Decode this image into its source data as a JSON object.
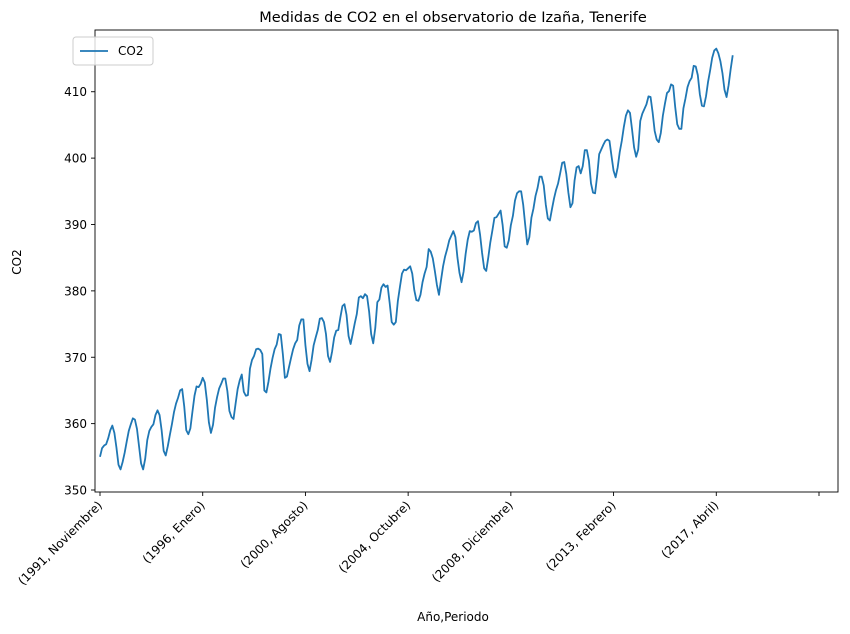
{
  "chart_data": {
    "type": "line",
    "title": "Medidas de CO2 en el observatorio de Izaña, Tenerife",
    "xlabel": "Año,Periodo",
    "ylabel": "CO2",
    "ylim": [
      349.7,
      419.3
    ],
    "yticks": [
      350,
      360,
      370,
      380,
      390,
      400,
      410
    ],
    "x_range": [
      0,
      339
    ],
    "xticks": [
      {
        "x": 0,
        "label": "(1991, Noviembre)"
      },
      {
        "x": 50,
        "label": "(1996, Enero)"
      },
      {
        "x": 100,
        "label": "(2000, Agosto)"
      },
      {
        "x": 150,
        "label": "(2004, Octubre)"
      },
      {
        "x": 200,
        "label": "(2008, Diciembre)"
      },
      {
        "x": 250,
        "label": "(2013, Febrero)"
      },
      {
        "x": 300,
        "label": "(2017, Abril)"
      },
      {
        "x": 350,
        "label": ""
      }
    ],
    "legend": {
      "position": "top-left"
    },
    "grid": false,
    "series": [
      {
        "name": "CO2",
        "color": "#1f77b4",
        "points": [
          [
            0,
            355.0
          ],
          [
            1,
            356.3
          ],
          [
            2,
            356.7
          ],
          [
            3,
            356.9
          ],
          [
            4,
            357.8
          ],
          [
            5,
            359.0
          ],
          [
            6,
            359.7
          ],
          [
            7,
            358.6
          ],
          [
            8,
            356.4
          ],
          [
            9,
            353.8
          ],
          [
            10,
            353.1
          ],
          [
            11,
            354.2
          ],
          [
            12,
            355.6
          ],
          [
            13,
            357.3
          ],
          [
            14,
            358.9
          ],
          [
            15,
            359.9
          ],
          [
            16,
            360.8
          ],
          [
            17,
            360.6
          ],
          [
            18,
            359.2
          ],
          [
            19,
            356.6
          ],
          [
            20,
            354.0
          ],
          [
            21,
            353.1
          ],
          [
            22,
            354.7
          ],
          [
            23,
            357.5
          ],
          [
            24,
            358.9
          ],
          [
            25,
            359.5
          ],
          [
            26,
            359.9
          ],
          [
            27,
            361.3
          ],
          [
            28,
            362.0
          ],
          [
            29,
            361.3
          ],
          [
            30,
            359.0
          ],
          [
            31,
            355.9
          ],
          [
            32,
            355.2
          ],
          [
            33,
            356.6
          ],
          [
            34,
            358.3
          ],
          [
            35,
            359.9
          ],
          [
            36,
            361.7
          ],
          [
            37,
            363.0
          ],
          [
            38,
            363.9
          ],
          [
            39,
            365.0
          ],
          [
            40,
            365.2
          ],
          [
            41,
            362.6
          ],
          [
            42,
            359.0
          ],
          [
            43,
            358.4
          ],
          [
            44,
            359.3
          ],
          [
            45,
            361.8
          ],
          [
            46,
            364.2
          ],
          [
            47,
            365.6
          ],
          [
            48,
            365.5
          ],
          [
            49,
            366.0
          ],
          [
            50,
            366.9
          ],
          [
            51,
            366.2
          ],
          [
            52,
            363.6
          ],
          [
            53,
            360.2
          ],
          [
            54,
            358.6
          ],
          [
            55,
            359.8
          ],
          [
            56,
            362.4
          ],
          [
            57,
            364.0
          ],
          [
            58,
            365.3
          ],
          [
            59,
            366.0
          ],
          [
            60,
            366.8
          ],
          [
            61,
            366.8
          ],
          [
            62,
            364.9
          ],
          [
            63,
            361.9
          ],
          [
            64,
            361.0
          ],
          [
            65,
            360.7
          ],
          [
            66,
            363.0
          ],
          [
            67,
            365.2
          ],
          [
            68,
            366.5
          ],
          [
            69,
            367.4
          ],
          [
            70,
            364.8
          ],
          [
            71,
            364.2
          ],
          [
            72,
            364.3
          ],
          [
            73,
            368.3
          ],
          [
            74,
            369.6
          ],
          [
            75,
            370.2
          ],
          [
            76,
            371.2
          ],
          [
            77,
            371.3
          ],
          [
            78,
            371.1
          ],
          [
            79,
            370.5
          ],
          [
            80,
            365.0
          ],
          [
            81,
            364.7
          ],
          [
            82,
            366.3
          ],
          [
            83,
            368.3
          ],
          [
            84,
            369.9
          ],
          [
            85,
            371.2
          ],
          [
            86,
            371.9
          ],
          [
            87,
            373.5
          ],
          [
            88,
            373.4
          ],
          [
            89,
            370.5
          ],
          [
            90,
            366.9
          ],
          [
            91,
            367.1
          ],
          [
            92,
            368.5
          ],
          [
            93,
            369.9
          ],
          [
            94,
            371.2
          ],
          [
            95,
            372.1
          ],
          [
            96,
            372.6
          ],
          [
            97,
            374.8
          ],
          [
            98,
            375.7
          ],
          [
            99,
            375.7
          ],
          [
            100,
            371.8
          ],
          [
            101,
            369.0
          ],
          [
            102,
            367.9
          ],
          [
            103,
            369.6
          ],
          [
            104,
            371.8
          ],
          [
            105,
            373.0
          ],
          [
            106,
            374.1
          ],
          [
            107,
            375.8
          ],
          [
            108,
            375.9
          ],
          [
            109,
            375.3
          ],
          [
            110,
            373.5
          ],
          [
            111,
            370.2
          ],
          [
            112,
            369.3
          ],
          [
            113,
            370.9
          ],
          [
            114,
            373.0
          ],
          [
            115,
            374.0
          ],
          [
            116,
            374.1
          ],
          [
            117,
            376.0
          ],
          [
            118,
            377.7
          ],
          [
            119,
            378.0
          ],
          [
            120,
            376.4
          ],
          [
            121,
            373.2
          ],
          [
            122,
            372.0
          ],
          [
            123,
            373.5
          ],
          [
            124,
            375.1
          ],
          [
            125,
            376.5
          ],
          [
            126,
            379.0
          ],
          [
            127,
            379.2
          ],
          [
            128,
            378.9
          ],
          [
            129,
            379.5
          ],
          [
            130,
            379.2
          ],
          [
            131,
            376.9
          ],
          [
            132,
            373.5
          ],
          [
            133,
            372.1
          ],
          [
            134,
            374.4
          ],
          [
            135,
            378.3
          ],
          [
            136,
            378.7
          ],
          [
            137,
            380.5
          ],
          [
            138,
            381.0
          ],
          [
            139,
            380.6
          ],
          [
            140,
            380.8
          ],
          [
            141,
            378.2
          ],
          [
            142,
            375.3
          ],
          [
            143,
            374.9
          ],
          [
            144,
            375.3
          ],
          [
            145,
            378.5
          ],
          [
            146,
            380.6
          ],
          [
            147,
            382.6
          ],
          [
            148,
            383.2
          ],
          [
            149,
            383.1
          ],
          [
            150,
            383.4
          ],
          [
            151,
            383.7
          ],
          [
            152,
            382.6
          ],
          [
            153,
            380.1
          ],
          [
            154,
            378.6
          ],
          [
            155,
            378.5
          ],
          [
            156,
            379.4
          ],
          [
            157,
            381.3
          ],
          [
            158,
            382.6
          ],
          [
            159,
            383.6
          ],
          [
            160,
            386.3
          ],
          [
            161,
            385.9
          ],
          [
            162,
            384.9
          ],
          [
            163,
            383.0
          ],
          [
            164,
            380.9
          ],
          [
            165,
            379.4
          ],
          [
            166,
            381.6
          ],
          [
            167,
            383.7
          ],
          [
            168,
            385.2
          ],
          [
            169,
            386.3
          ],
          [
            170,
            387.6
          ],
          [
            171,
            388.3
          ],
          [
            172,
            389.0
          ],
          [
            173,
            388.1
          ],
          [
            174,
            385.0
          ],
          [
            175,
            382.7
          ],
          [
            176,
            381.3
          ],
          [
            177,
            382.9
          ],
          [
            178,
            385.6
          ],
          [
            179,
            387.7
          ],
          [
            180,
            389.0
          ],
          [
            181,
            388.9
          ],
          [
            182,
            389.1
          ],
          [
            183,
            390.2
          ],
          [
            184,
            390.5
          ],
          [
            185,
            388.5
          ],
          [
            186,
            385.7
          ],
          [
            187,
            383.4
          ],
          [
            188,
            383.0
          ],
          [
            189,
            385.0
          ],
          [
            190,
            387.3
          ],
          [
            191,
            389.1
          ],
          [
            192,
            391.0
          ],
          [
            193,
            391.1
          ],
          [
            194,
            391.6
          ],
          [
            195,
            392.1
          ],
          [
            196,
            389.9
          ],
          [
            197,
            386.7
          ],
          [
            198,
            386.5
          ],
          [
            199,
            387.6
          ],
          [
            200,
            389.9
          ],
          [
            201,
            391.3
          ],
          [
            202,
            393.6
          ],
          [
            203,
            394.7
          ],
          [
            204,
            395.0
          ],
          [
            205,
            395.0
          ],
          [
            206,
            393.0
          ],
          [
            207,
            389.9
          ],
          [
            208,
            387.0
          ],
          [
            209,
            388.1
          ],
          [
            210,
            391.0
          ],
          [
            211,
            392.4
          ],
          [
            212,
            394.3
          ],
          [
            213,
            395.5
          ],
          [
            214,
            397.2
          ],
          [
            215,
            397.2
          ],
          [
            216,
            395.9
          ],
          [
            217,
            393.0
          ],
          [
            218,
            390.9
          ],
          [
            219,
            390.6
          ],
          [
            220,
            392.3
          ],
          [
            221,
            393.9
          ],
          [
            222,
            395.2
          ],
          [
            223,
            396.2
          ],
          [
            224,
            397.7
          ],
          [
            225,
            399.3
          ],
          [
            226,
            399.4
          ],
          [
            227,
            397.6
          ],
          [
            228,
            394.8
          ],
          [
            229,
            392.6
          ],
          [
            230,
            393.2
          ],
          [
            231,
            396.6
          ],
          [
            232,
            398.6
          ],
          [
            233,
            398.8
          ],
          [
            234,
            397.7
          ],
          [
            235,
            398.8
          ],
          [
            236,
            401.2
          ],
          [
            237,
            401.2
          ],
          [
            238,
            399.6
          ],
          [
            239,
            396.2
          ],
          [
            240,
            394.8
          ],
          [
            241,
            394.7
          ],
          [
            242,
            397.3
          ],
          [
            243,
            400.6
          ],
          [
            244,
            401.3
          ],
          [
            245,
            402.0
          ],
          [
            246,
            402.6
          ],
          [
            247,
            402.8
          ],
          [
            248,
            402.6
          ],
          [
            249,
            400.3
          ],
          [
            250,
            398.1
          ],
          [
            251,
            397.1
          ],
          [
            252,
            398.6
          ],
          [
            253,
            400.9
          ],
          [
            254,
            402.6
          ],
          [
            255,
            404.7
          ],
          [
            256,
            406.4
          ],
          [
            257,
            407.2
          ],
          [
            258,
            406.8
          ],
          [
            259,
            404.3
          ],
          [
            260,
            401.6
          ],
          [
            261,
            400.2
          ],
          [
            262,
            401.3
          ],
          [
            263,
            405.6
          ],
          [
            264,
            406.7
          ],
          [
            265,
            407.4
          ],
          [
            266,
            408.1
          ],
          [
            267,
            409.3
          ],
          [
            268,
            409.2
          ],
          [
            269,
            406.9
          ],
          [
            270,
            404.1
          ],
          [
            271,
            402.8
          ],
          [
            272,
            402.4
          ],
          [
            273,
            403.8
          ],
          [
            274,
            406.4
          ],
          [
            275,
            408.2
          ],
          [
            276,
            409.8
          ],
          [
            277,
            410.1
          ],
          [
            278,
            411.1
          ],
          [
            279,
            410.9
          ],
          [
            280,
            407.7
          ],
          [
            281,
            405.1
          ],
          [
            282,
            404.4
          ],
          [
            283,
            404.4
          ],
          [
            284,
            407.5
          ],
          [
            285,
            409.0
          ],
          [
            286,
            410.7
          ],
          [
            287,
            411.6
          ],
          [
            288,
            412.1
          ],
          [
            289,
            413.9
          ],
          [
            290,
            413.8
          ],
          [
            291,
            412.5
          ],
          [
            292,
            409.6
          ],
          [
            293,
            407.9
          ],
          [
            294,
            407.8
          ],
          [
            295,
            409.3
          ],
          [
            296,
            411.5
          ],
          [
            297,
            413.2
          ],
          [
            298,
            415.1
          ],
          [
            299,
            416.2
          ],
          [
            300,
            416.5
          ],
          [
            301,
            415.8
          ],
          [
            302,
            414.6
          ],
          [
            303,
            412.8
          ],
          [
            304,
            410.3
          ],
          [
            305,
            409.2
          ],
          [
            306,
            411.0
          ],
          [
            307,
            413.4
          ],
          [
            308,
            415.5
          ]
        ]
      }
    ]
  }
}
